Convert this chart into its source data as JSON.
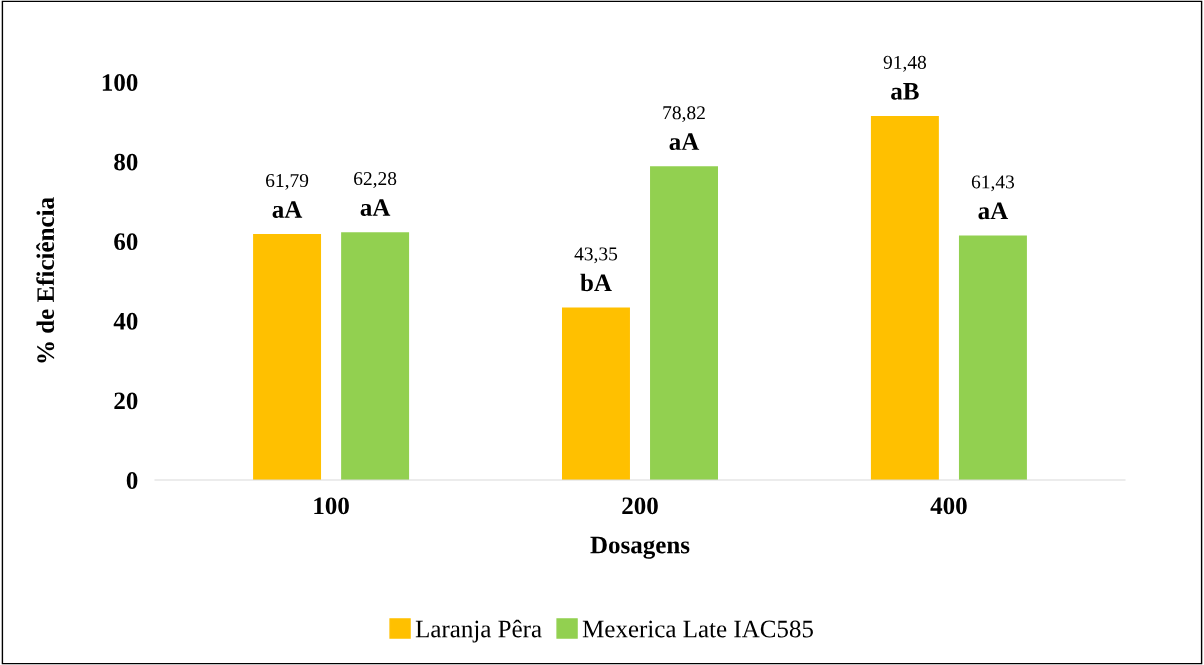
{
  "chart_data": {
    "type": "bar",
    "xlabel": "Dosagens",
    "ylabel": "% de Eficiência",
    "categories": [
      "100",
      "200",
      "400"
    ],
    "series": [
      {
        "name": "Laranja Pêra",
        "color": "#ffc000",
        "values": [
          61.79,
          43.35,
          91.48
        ],
        "value_labels": [
          "61,79",
          "43,35",
          "91,48"
        ]
      },
      {
        "name": "Mexerica Late IAC585",
        "color": "#92d050",
        "values": [
          62.28,
          78.82,
          61.43
        ],
        "value_labels": [
          "62,28",
          "78,82",
          "61,43"
        ]
      }
    ],
    "annotations": [
      "aA",
      "aA",
      "bA",
      "aA",
      "aB",
      "aA"
    ],
    "ylim": [
      0,
      100
    ],
    "yticks": [
      0,
      20,
      40,
      60,
      80,
      100
    ],
    "grid": false,
    "legend": "bottom"
  }
}
